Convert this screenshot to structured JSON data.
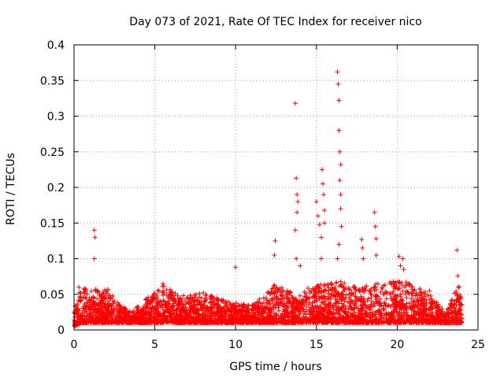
{
  "chart_data": {
    "type": "scatter",
    "title": "Day 073 of 2021, Rate Of TEC Index for receiver nico",
    "xlabel": "GPS time / hours",
    "ylabel": "ROTI / TECUs",
    "xlim": [
      0,
      25
    ],
    "ylim": [
      0,
      0.4
    ],
    "xticks": [
      0,
      5,
      10,
      15,
      20,
      25
    ],
    "yticks": [
      0,
      0.05,
      0.1,
      0.15,
      0.2,
      0.25,
      0.3,
      0.35,
      0.4
    ],
    "ytick_labels": [
      "0",
      "0.05",
      "0.1",
      "0.15",
      "0.2",
      "0.25",
      "0.3",
      "0.35",
      "0.4"
    ],
    "xtick_labels": [
      "0",
      "5",
      "10",
      "15",
      "20",
      "25"
    ],
    "grid": true,
    "marker": "+",
    "color": "#ff0000",
    "notable_points": [
      {
        "x": 0.3,
        "y": 0.06
      },
      {
        "x": 1.25,
        "y": 0.14
      },
      {
        "x": 1.3,
        "y": 0.13
      },
      {
        "x": 1.25,
        "y": 0.1
      },
      {
        "x": 2.1,
        "y": 0.057
      },
      {
        "x": 5.5,
        "y": 0.065
      },
      {
        "x": 8.0,
        "y": 0.052
      },
      {
        "x": 10.0,
        "y": 0.088
      },
      {
        "x": 12.4,
        "y": 0.105
      },
      {
        "x": 12.45,
        "y": 0.125
      },
      {
        "x": 13.7,
        "y": 0.318
      },
      {
        "x": 13.75,
        "y": 0.213
      },
      {
        "x": 13.8,
        "y": 0.19
      },
      {
        "x": 13.85,
        "y": 0.18
      },
      {
        "x": 13.8,
        "y": 0.165
      },
      {
        "x": 13.7,
        "y": 0.14
      },
      {
        "x": 13.75,
        "y": 0.1
      },
      {
        "x": 14.0,
        "y": 0.09
      },
      {
        "x": 15.0,
        "y": 0.18
      },
      {
        "x": 15.1,
        "y": 0.16
      },
      {
        "x": 15.2,
        "y": 0.148
      },
      {
        "x": 15.35,
        "y": 0.225
      },
      {
        "x": 15.4,
        "y": 0.205
      },
      {
        "x": 15.45,
        "y": 0.19
      },
      {
        "x": 15.5,
        "y": 0.168
      },
      {
        "x": 15.5,
        "y": 0.15
      },
      {
        "x": 15.3,
        "y": 0.13
      },
      {
        "x": 15.3,
        "y": 0.1
      },
      {
        "x": 16.3,
        "y": 0.362
      },
      {
        "x": 16.35,
        "y": 0.345
      },
      {
        "x": 16.4,
        "y": 0.322
      },
      {
        "x": 16.4,
        "y": 0.28
      },
      {
        "x": 16.45,
        "y": 0.25
      },
      {
        "x": 16.5,
        "y": 0.232
      },
      {
        "x": 16.45,
        "y": 0.21
      },
      {
        "x": 16.5,
        "y": 0.19
      },
      {
        "x": 16.5,
        "y": 0.17
      },
      {
        "x": 16.55,
        "y": 0.145
      },
      {
        "x": 16.4,
        "y": 0.12
      },
      {
        "x": 16.3,
        "y": 0.1
      },
      {
        "x": 17.8,
        "y": 0.127
      },
      {
        "x": 17.85,
        "y": 0.115
      },
      {
        "x": 17.9,
        "y": 0.1
      },
      {
        "x": 18.6,
        "y": 0.165
      },
      {
        "x": 18.65,
        "y": 0.145
      },
      {
        "x": 18.7,
        "y": 0.128
      },
      {
        "x": 18.7,
        "y": 0.105
      },
      {
        "x": 20.1,
        "y": 0.103
      },
      {
        "x": 20.2,
        "y": 0.09
      },
      {
        "x": 20.35,
        "y": 0.1
      },
      {
        "x": 20.4,
        "y": 0.085
      },
      {
        "x": 22.0,
        "y": 0.055
      },
      {
        "x": 23.7,
        "y": 0.112
      },
      {
        "x": 23.75,
        "y": 0.076
      }
    ],
    "baseline_profile": [
      {
        "x": 0,
        "low": 0.005,
        "high": 0.03
      },
      {
        "x": 0.4,
        "low": 0.01,
        "high": 0.058
      },
      {
        "x": 1.3,
        "low": 0.01,
        "high": 0.06
      },
      {
        "x": 2.1,
        "low": 0.01,
        "high": 0.055
      },
      {
        "x": 3.5,
        "low": 0.01,
        "high": 0.025
      },
      {
        "x": 5.5,
        "low": 0.01,
        "high": 0.063
      },
      {
        "x": 6.7,
        "low": 0.01,
        "high": 0.048
      },
      {
        "x": 8.0,
        "low": 0.01,
        "high": 0.052
      },
      {
        "x": 9.5,
        "low": 0.01,
        "high": 0.04
      },
      {
        "x": 11.0,
        "low": 0.01,
        "high": 0.035
      },
      {
        "x": 12.4,
        "low": 0.01,
        "high": 0.065
      },
      {
        "x": 13.7,
        "low": 0.01,
        "high": 0.05
      },
      {
        "x": 14.6,
        "low": 0.01,
        "high": 0.06
      },
      {
        "x": 15.3,
        "low": 0.01,
        "high": 0.065
      },
      {
        "x": 16.4,
        "low": 0.01,
        "high": 0.07
      },
      {
        "x": 17.6,
        "low": 0.01,
        "high": 0.06
      },
      {
        "x": 18.7,
        "low": 0.01,
        "high": 0.065
      },
      {
        "x": 20.3,
        "low": 0.01,
        "high": 0.07
      },
      {
        "x": 21.8,
        "low": 0.01,
        "high": 0.055
      },
      {
        "x": 23.0,
        "low": 0.01,
        "high": 0.025
      },
      {
        "x": 23.8,
        "low": 0.01,
        "high": 0.065
      },
      {
        "x": 24.0,
        "low": 0.01,
        "high": 0.04
      }
    ]
  }
}
